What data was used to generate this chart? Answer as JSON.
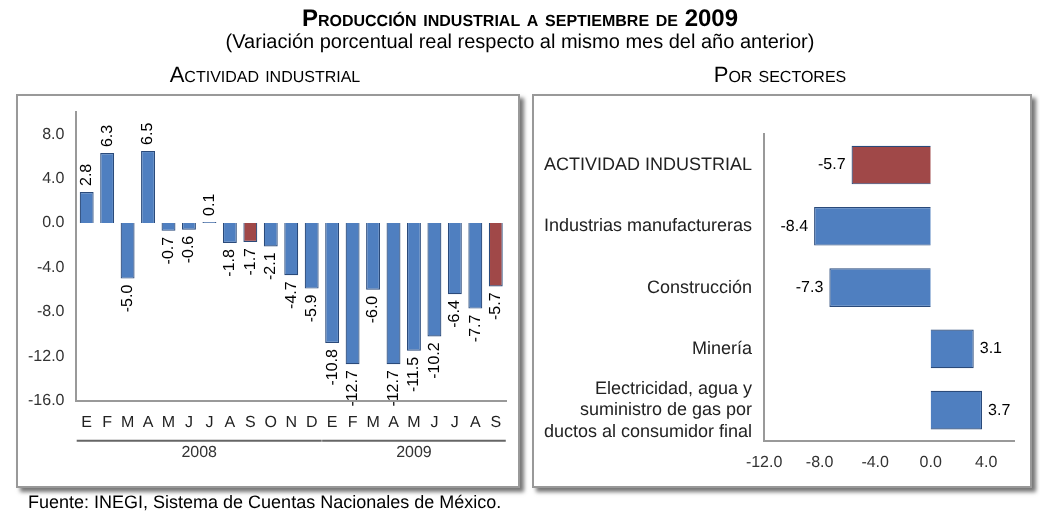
{
  "chart_data": [
    {
      "type": "bar",
      "title": "Actividad industrial",
      "categories": [
        "E",
        "F",
        "M",
        "A",
        "M",
        "J",
        "J",
        "A",
        "S",
        "O",
        "N",
        "D",
        "E",
        "F",
        "M",
        "A",
        "M",
        "J",
        "J",
        "A",
        "S"
      ],
      "values": [
        2.8,
        6.3,
        -5.0,
        6.5,
        -0.7,
        -0.6,
        0.1,
        -1.8,
        -1.7,
        -2.1,
        -4.7,
        -5.9,
        -10.8,
        -12.7,
        -6.0,
        -12.7,
        -11.5,
        -10.2,
        -6.4,
        -7.7,
        -5.7
      ],
      "colors": [
        "#4f7fc0",
        "#4f7fc0",
        "#4f7fc0",
        "#4f7fc0",
        "#4f7fc0",
        "#4f7fc0",
        "#4f7fc0",
        "#4f7fc0",
        "#a04848",
        "#4f7fc0",
        "#4f7fc0",
        "#4f7fc0",
        "#4f7fc0",
        "#4f7fc0",
        "#4f7fc0",
        "#4f7fc0",
        "#4f7fc0",
        "#4f7fc0",
        "#4f7fc0",
        "#4f7fc0",
        "#a04848"
      ],
      "ylim": [
        -16,
        10
      ],
      "yticks": [
        {
          "value": -16,
          "label": "-16.0"
        },
        {
          "value": -12,
          "label": "-12.0"
        },
        {
          "value": -8,
          "label": "-8.0"
        },
        {
          "value": -4,
          "label": "-4.0"
        },
        {
          "value": 0,
          "label": "0.0"
        },
        {
          "value": 4,
          "label": "4.0"
        },
        {
          "value": 8,
          "label": "8.0"
        }
      ],
      "value_labels": [
        "2.8",
        "6.3",
        "-5.0",
        "6.5",
        "-0.7",
        "-0.6",
        "0.1",
        "-1.8",
        "-1.7",
        "-2.1",
        "-4.7",
        "-5.9",
        "-10.8",
        "-12.7",
        "-6.0",
        "-12.7",
        "-11.5",
        "-10.2",
        "-6.4",
        "-7.7",
        "-5.7"
      ],
      "grid": false,
      "legend": false,
      "annotations": [
        "Producción industrial a septiembre de 2009",
        "(Variación porcentual real respecto al mismo mes del año anterior)",
        "2008",
        "2009",
        "Fuente: INEGI, Sistema de Cuentas Nacionales de México."
      ]
    },
    {
      "type": "bar",
      "orientation": "horizontal",
      "title": "Por sectores",
      "categories": [
        "ACTIVIDAD INDUSTRIAL",
        "Industrias manufactureras",
        "Construcción",
        "Minería",
        "Electricidad, agua y suministro de gas por ductos al consumidor final"
      ],
      "values": [
        -5.7,
        -8.4,
        -7.3,
        3.1,
        3.7
      ],
      "colors": [
        "#a04848",
        "#4f7fc0",
        "#4f7fc0",
        "#4f7fc0",
        "#4f7fc0"
      ],
      "xlim": [
        -12,
        6
      ],
      "xticks": [
        {
          "value": -12,
          "label": "-12.0"
        },
        {
          "value": -8,
          "label": "-8.0"
        },
        {
          "value": -4,
          "label": "-4.0"
        },
        {
          "value": 0,
          "label": "0.0"
        },
        {
          "value": 4,
          "label": "4.0"
        }
      ],
      "data_labels": true,
      "grid": false,
      "legend": false
    }
  ]
}
